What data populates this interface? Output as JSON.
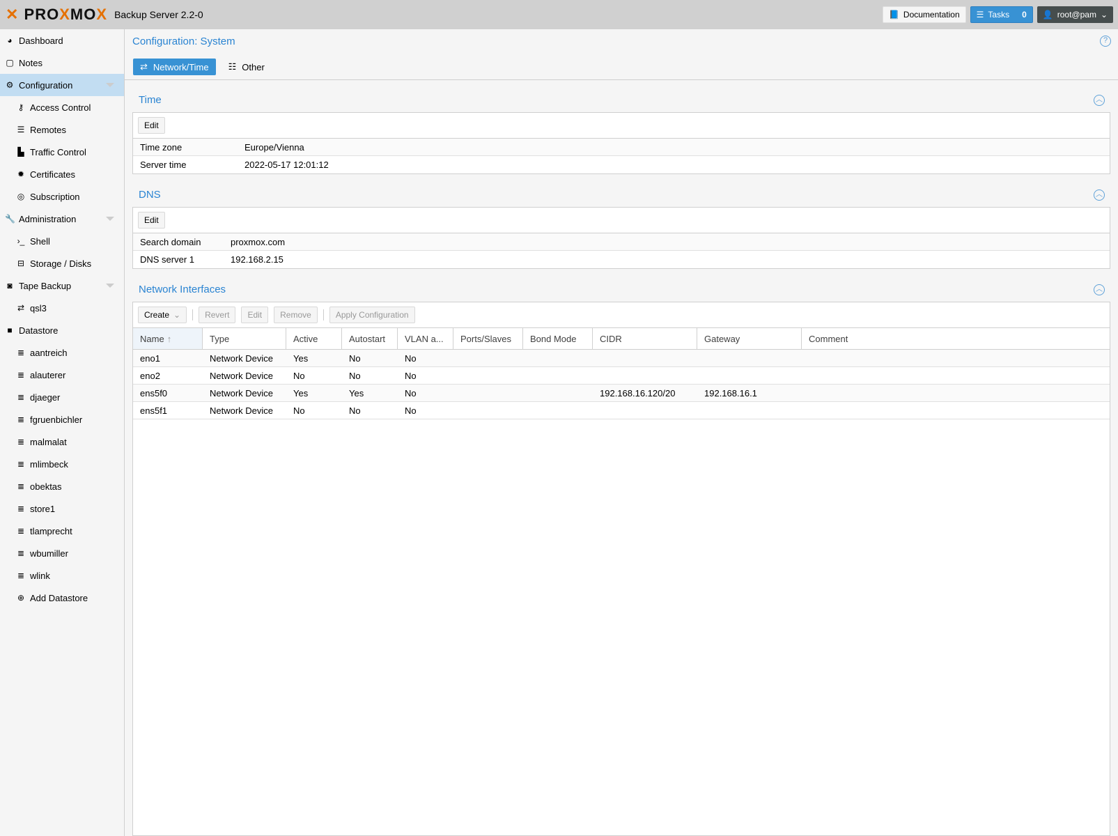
{
  "header": {
    "logo": "PROXMOX",
    "product": "Backup Server 2.2-0",
    "documentation": "Documentation",
    "tasks_label": "Tasks",
    "tasks_count": "0",
    "user": "root@pam",
    "accent": "#3892d4",
    "logo_color": "#e57000"
  },
  "sidebar": {
    "items": [
      {
        "label": "Dashboard",
        "icon": "dashboard-icon",
        "level": 0
      },
      {
        "label": "Notes",
        "icon": "note-icon",
        "level": 0
      },
      {
        "label": "Configuration",
        "icon": "gears-icon",
        "level": 0,
        "selected": true,
        "expandable": true
      },
      {
        "label": "Access Control",
        "icon": "key-icon",
        "level": 1
      },
      {
        "label": "Remotes",
        "icon": "server-icon",
        "level": 1
      },
      {
        "label": "Traffic Control",
        "icon": "chart-icon",
        "level": 1
      },
      {
        "label": "Certificates",
        "icon": "certificate-icon",
        "level": 1
      },
      {
        "label": "Subscription",
        "icon": "life-ring-icon",
        "level": 1
      },
      {
        "label": "Administration",
        "icon": "wrench-icon",
        "level": 0,
        "expandable": true
      },
      {
        "label": "Shell",
        "icon": "terminal-icon",
        "level": 1
      },
      {
        "label": "Storage / Disks",
        "icon": "hdd-icon",
        "level": 1
      },
      {
        "label": "Tape Backup",
        "icon": "tape-icon",
        "level": 0,
        "expandable": true
      },
      {
        "label": "qsl3",
        "icon": "exchange-icon",
        "level": 1
      },
      {
        "label": "Datastore",
        "icon": "archive-icon",
        "level": 0
      },
      {
        "label": "aantreich",
        "icon": "database-icon",
        "level": 1
      },
      {
        "label": "alauterer",
        "icon": "database-icon",
        "level": 1
      },
      {
        "label": "djaeger",
        "icon": "database-icon",
        "level": 1
      },
      {
        "label": "fgruenbichler",
        "icon": "database-icon",
        "level": 1
      },
      {
        "label": "malmalat",
        "icon": "database-icon",
        "level": 1
      },
      {
        "label": "mlimbeck",
        "icon": "database-icon",
        "level": 1
      },
      {
        "label": "obektas",
        "icon": "database-icon",
        "level": 1
      },
      {
        "label": "store1",
        "icon": "database-icon",
        "level": 1
      },
      {
        "label": "tlamprecht",
        "icon": "database-icon",
        "level": 1
      },
      {
        "label": "wbumiller",
        "icon": "database-icon",
        "level": 1
      },
      {
        "label": "wlink",
        "icon": "database-icon",
        "level": 1
      },
      {
        "label": "Add Datastore",
        "icon": "plus-circle-icon",
        "level": 1
      }
    ]
  },
  "main": {
    "title": "Configuration: System",
    "tabs": [
      {
        "label": "Network/Time",
        "active": true
      },
      {
        "label": "Other"
      }
    ],
    "time": {
      "title": "Time",
      "edit": "Edit",
      "rows": [
        {
          "key": "Time zone",
          "value": "Europe/Vienna"
        },
        {
          "key": "Server time",
          "value": "2022-05-17 12:01:12"
        }
      ]
    },
    "dns": {
      "title": "DNS",
      "edit": "Edit",
      "rows": [
        {
          "key": "Search domain",
          "value": "proxmox.com"
        },
        {
          "key": "DNS server 1",
          "value": "192.168.2.15"
        }
      ]
    },
    "network": {
      "title": "Network Interfaces",
      "toolbar": {
        "create": "Create",
        "revert": "Revert",
        "edit": "Edit",
        "remove": "Remove",
        "apply": "Apply Configuration"
      },
      "columns": [
        "Name",
        "Type",
        "Active",
        "Autostart",
        "VLAN a...",
        "Ports/Slaves",
        "Bond Mode",
        "CIDR",
        "Gateway",
        "Comment"
      ],
      "rows": [
        [
          "eno1",
          "Network Device",
          "Yes",
          "No",
          "No",
          "",
          "",
          "",
          "",
          ""
        ],
        [
          "eno2",
          "Network Device",
          "No",
          "No",
          "No",
          "",
          "",
          "",
          "",
          ""
        ],
        [
          "ens5f0",
          "Network Device",
          "Yes",
          "Yes",
          "No",
          "",
          "",
          "192.168.16.120/20",
          "192.168.16.1",
          ""
        ],
        [
          "ens5f1",
          "Network Device",
          "No",
          "No",
          "No",
          "",
          "",
          "",
          "",
          ""
        ]
      ]
    }
  }
}
